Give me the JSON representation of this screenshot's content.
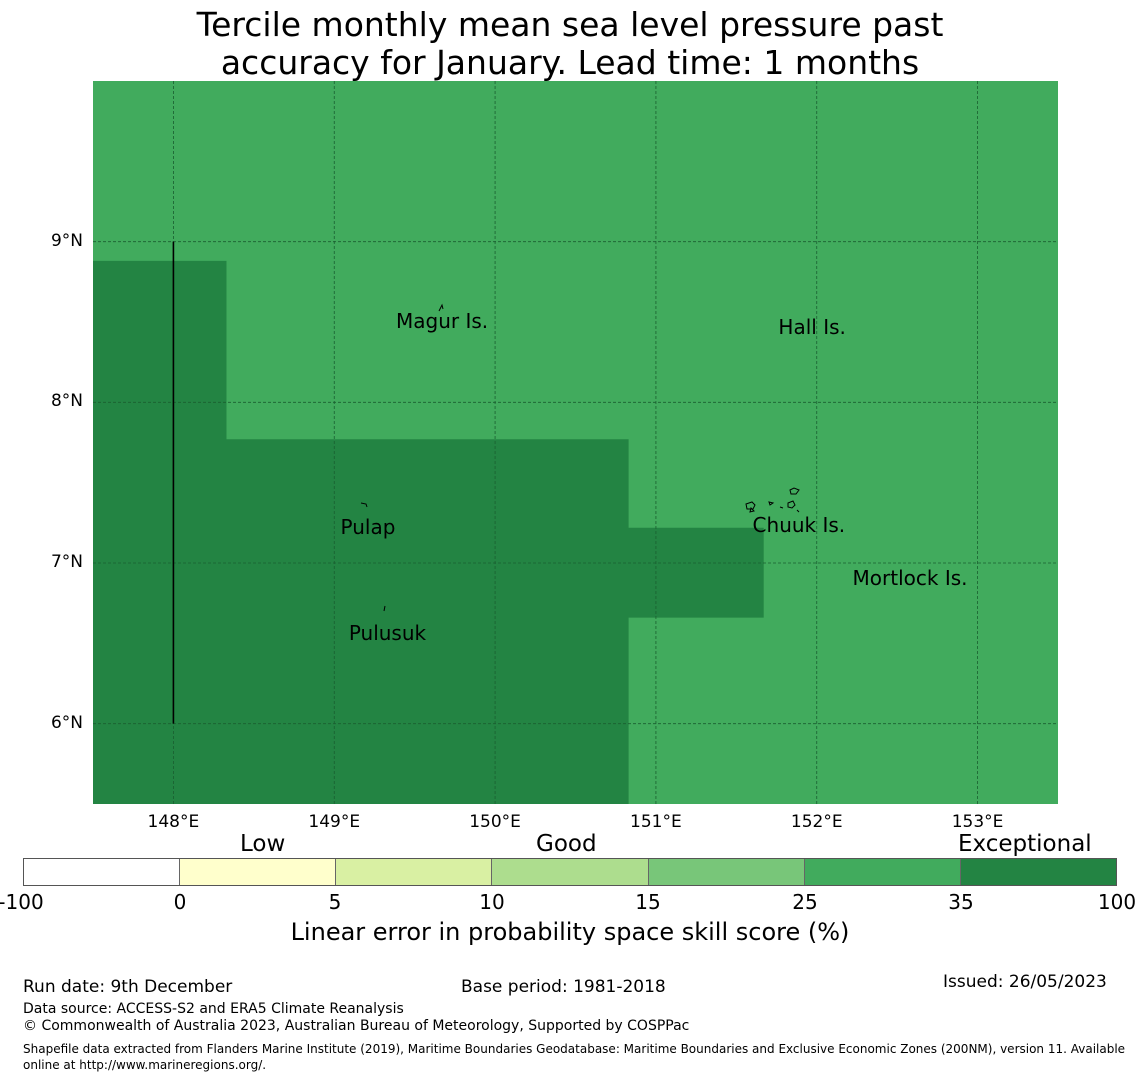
{
  "title": {
    "line1": "Tercile monthly mean sea level pressure past",
    "line2": "accuracy for January. Lead time: 1 months"
  },
  "map": {
    "lon_range": [
      147.5,
      153.5
    ],
    "lat_range": [
      5.5,
      10.0
    ],
    "background_color": "#41ab5d",
    "exceptional_color": "#238443",
    "lat_ticks": [
      {
        "value": 9,
        "label": "9°N"
      },
      {
        "value": 8,
        "label": "8°N"
      },
      {
        "value": 7,
        "label": "7°N"
      },
      {
        "value": 6,
        "label": "6°N"
      }
    ],
    "lon_ticks": [
      {
        "value": 148,
        "label": "148°E"
      },
      {
        "value": 149,
        "label": "149°E"
      },
      {
        "value": 150,
        "label": "150°E"
      },
      {
        "value": 151,
        "label": "151°E"
      },
      {
        "value": 152,
        "label": "152°E"
      },
      {
        "value": 153,
        "label": "153°E"
      }
    ],
    "exceptional_region": [
      [
        147.5,
        8.88
      ],
      [
        148.33,
        8.88
      ],
      [
        148.33,
        7.77
      ],
      [
        150.83,
        7.77
      ],
      [
        150.83,
        7.22
      ],
      [
        151.67,
        7.22
      ],
      [
        151.67,
        6.66
      ],
      [
        150.83,
        6.66
      ],
      [
        150.83,
        5.5
      ],
      [
        147.5,
        5.5
      ]
    ],
    "boundary_line": [
      [
        148.0,
        9.0
      ],
      [
        148.0,
        6.0
      ]
    ],
    "places": [
      {
        "name": "Magur Is.",
        "lon": 149.67,
        "lat": 8.5
      },
      {
        "name": "Hall Is.",
        "lon": 151.97,
        "lat": 8.46
      },
      {
        "name": "Pulap",
        "lon": 149.21,
        "lat": 7.22
      },
      {
        "name": "Chuuk Is.",
        "lon": 151.89,
        "lat": 7.23
      },
      {
        "name": "Mortlock Is.",
        "lon": 152.58,
        "lat": 6.9
      },
      {
        "name": "Pulusuk",
        "lon": 149.33,
        "lat": 6.56
      }
    ]
  },
  "colorbar": {
    "categories": [
      "Low",
      "Good",
      "Exceptional"
    ],
    "colors": [
      "#ffffff",
      "#ffffcc",
      "#d9f0a3",
      "#addd8e",
      "#78c679",
      "#41ab5d",
      "#238443"
    ],
    "ticks": [
      "-100",
      "0",
      "5",
      "10",
      "15",
      "25",
      "35",
      "100"
    ],
    "label": "Linear error in probability space skill score (%)"
  },
  "footer": {
    "run_date": "Run date: 9th December",
    "base_period": "Base period: 1981-2018",
    "issued": "Issued: 26/05/2023",
    "data_source": "Data source: ACCESS-S2 and ERA5 Climate Reanalysis",
    "copyright": "© Commonwealth of Australia 2023, Australian Bureau of Meteorology, Supported by COSPPac",
    "shapefile": "Shapefile data extracted from Flanders Marine Institute (2019), Maritime Boundaries Geodatabase: Maritime Boundaries and Exclusive Economic Zones (200NM), version 11. Available online at http://www.marineregions.org/."
  }
}
